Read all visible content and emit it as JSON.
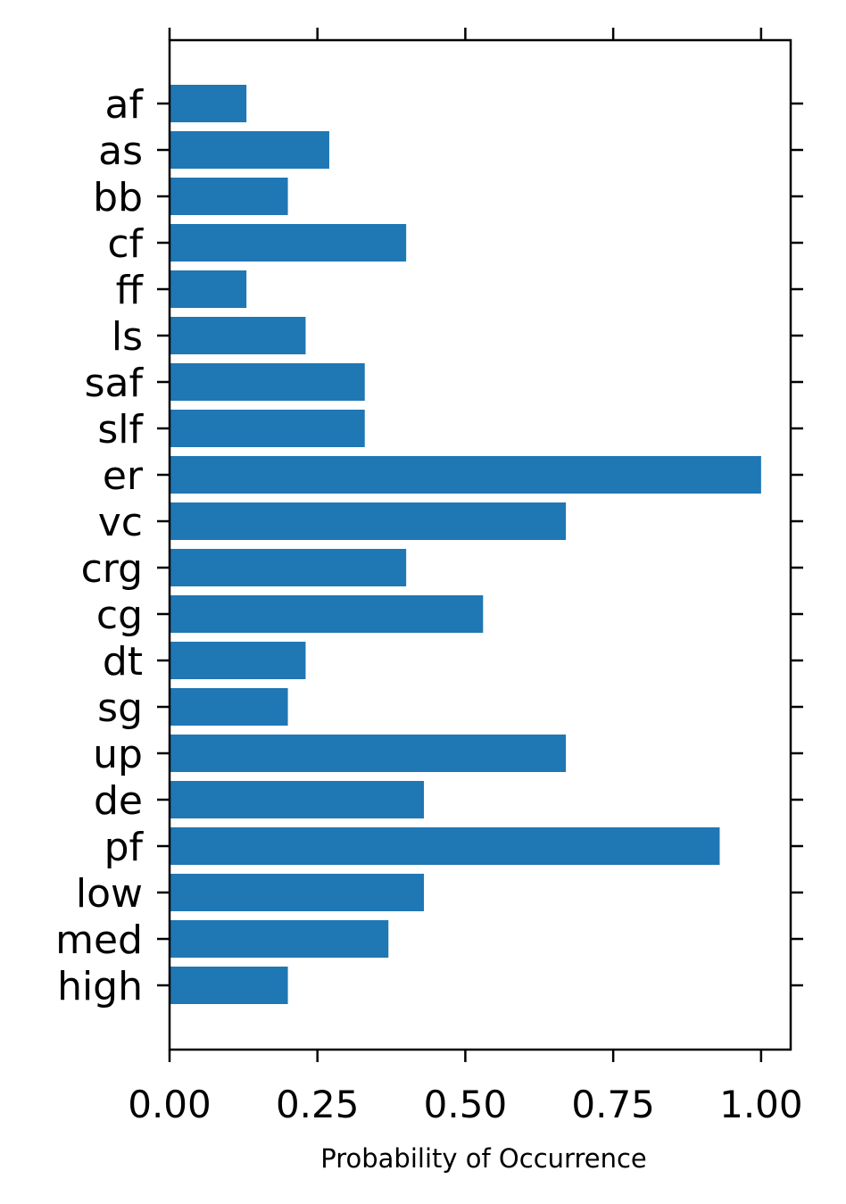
{
  "chart_data": {
    "type": "bar",
    "orientation": "horizontal",
    "categories": [
      "af",
      "as",
      "bb",
      "cf",
      "ff",
      "ls",
      "saf",
      "slf",
      "er",
      "vc",
      "crg",
      "cg",
      "dt",
      "sg",
      "up",
      "de",
      "pf",
      "low",
      "med",
      "high"
    ],
    "values": [
      0.13,
      0.27,
      0.2,
      0.4,
      0.13,
      0.23,
      0.33,
      0.33,
      1.0,
      0.67,
      0.4,
      0.53,
      0.23,
      0.2,
      0.67,
      0.43,
      0.93,
      0.43,
      0.37,
      0.2
    ],
    "xlabel": "Probability of Occurrence",
    "ylabel": "",
    "title": "",
    "xlim": [
      0,
      1.05
    ],
    "xticks": [
      0.0,
      0.25,
      0.5,
      0.75,
      1.0
    ],
    "xtick_labels": [
      "0.00",
      "0.25",
      "0.50",
      "0.75",
      "1.00"
    ],
    "grid": false,
    "bar_color": "#1f77b4"
  }
}
